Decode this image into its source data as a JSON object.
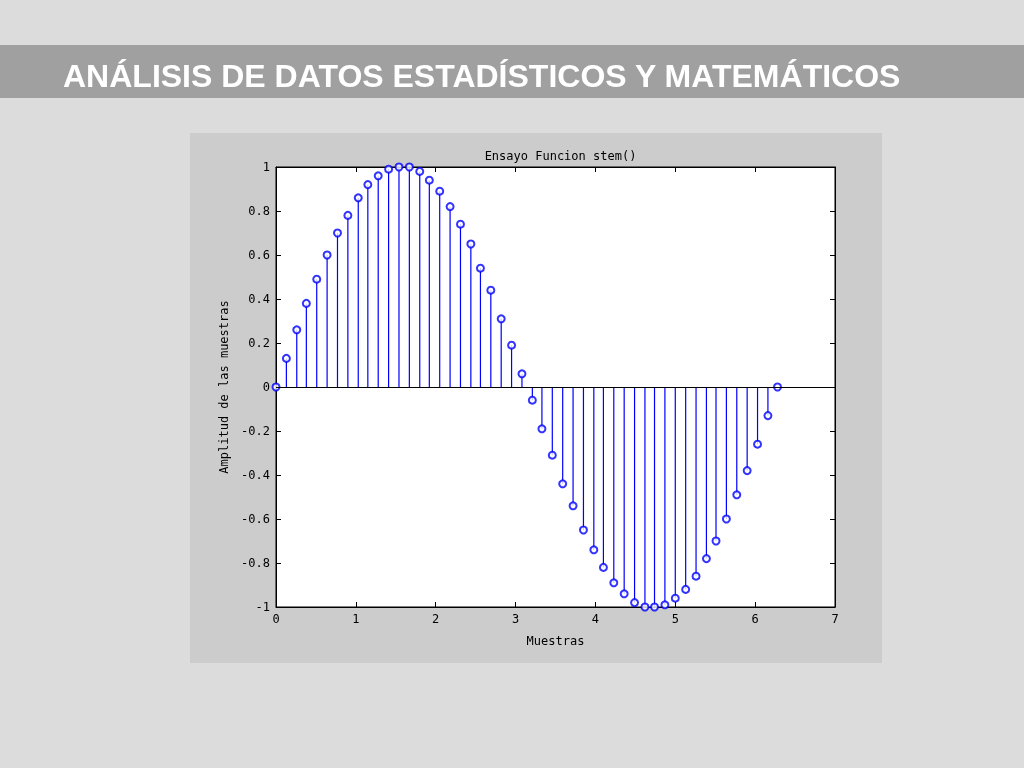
{
  "chart_data": {
    "type": "lollipop",
    "title": "ANÁLISIS DE DATOS ESTADÍSTICOS Y MATEMÁTICOS",
    "subtitle": "Ensayo Funcion stem()",
    "xlabel": "Muestras",
    "ylabel": "Amplitud de las muestras",
    "x": [
      0,
      0.13,
      0.26,
      0.38,
      0.51,
      0.64,
      0.77,
      0.9,
      1.03,
      1.15,
      1.28,
      1.41,
      1.54,
      1.67,
      1.8,
      1.92,
      2.05,
      2.18,
      2.31,
      2.44,
      2.56,
      2.69,
      2.82,
      2.95,
      3.08,
      3.21,
      3.33,
      3.46,
      3.59,
      3.72,
      3.85,
      3.98,
      4.1,
      4.23,
      4.36,
      4.49,
      4.62,
      4.74,
      4.87,
      5,
      5.13,
      5.26,
      5.39,
      5.51,
      5.64,
      5.77,
      5.9,
      6.03,
      6.16,
      6.28
    ],
    "series": [
      {
        "color": "#0000ff",
        "values": [
          0,
          0.13,
          0.26,
          0.38,
          0.49,
          0.6,
          0.7,
          0.78,
          0.86,
          0.92,
          0.96,
          0.99,
          1,
          1,
          0.98,
          0.94,
          0.89,
          0.82,
          0.74,
          0.65,
          0.54,
          0.44,
          0.31,
          0.19,
          0.06,
          -0.06,
          -0.19,
          -0.31,
          -0.44,
          -0.54,
          -0.65,
          -0.74,
          -0.82,
          -0.89,
          -0.94,
          -0.98,
          -1,
          -1,
          -0.99,
          -0.96,
          -0.92,
          -0.86,
          -0.78,
          -0.7,
          -0.6,
          -0.49,
          -0.38,
          -0.26,
          -0.13,
          0
        ]
      }
    ],
    "marker": "circle",
    "ref_lines": [
      {
        "axis": "y",
        "value": 0,
        "color": "#000000"
      }
    ],
    "xlim": [
      0,
      7
    ],
    "xticks": [
      0,
      1,
      2,
      3,
      4,
      5,
      6,
      7
    ],
    "ylim": [
      -1,
      1
    ],
    "yticks": [
      -1,
      -0.8,
      -0.6,
      -0.4,
      -0.2,
      0,
      0.2,
      0.4,
      0.6,
      0.8,
      1
    ]
  }
}
